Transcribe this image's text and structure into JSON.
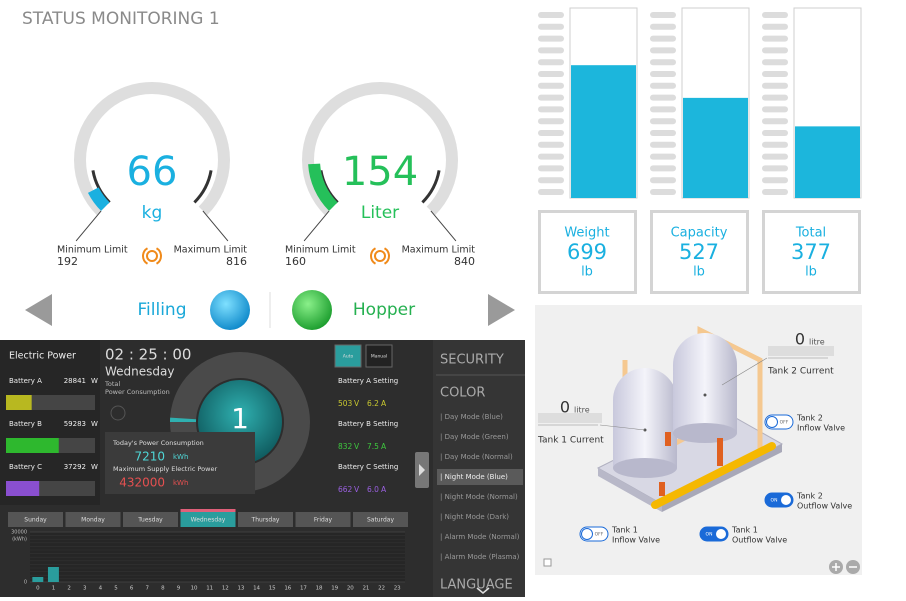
{
  "status_panel": {
    "title": "STATUS MONITORING 1",
    "gauges": [
      {
        "value": 66,
        "unit": "kg",
        "min_label": "Minimum Limit",
        "min": 192,
        "max_label": "Maximum Limit",
        "max": 816,
        "color": "#1ab0e0",
        "ylim": [
          0,
          1000
        ]
      },
      {
        "value": 154,
        "unit": "Liter",
        "min_label": "Minimum Limit",
        "min": 160,
        "max_label": "Maximum Limit",
        "max": 840,
        "color": "#25c05a",
        "ylim": [
          0,
          1000
        ]
      }
    ],
    "left_label": "Filling",
    "right_label": "Hopper"
  },
  "tanks": {
    "ylim": [
      0,
      1000
    ],
    "color": "#1cb6dc",
    "items": [
      {
        "name": "Weight",
        "value": 699,
        "unit": "lb"
      },
      {
        "name": "Capacity",
        "value": 527,
        "unit": "lb"
      },
      {
        "name": "Total",
        "value": 377,
        "unit": "lb"
      }
    ]
  },
  "power": {
    "title": "Electric Power",
    "battery_xlim": [
      0,
      100000
    ],
    "batteries": [
      {
        "name": "Battery A",
        "value": 28841,
        "unit": "W",
        "color": "#b8b820"
      },
      {
        "name": "Battery B",
        "value": 59283,
        "unit": "W",
        "color": "#2eb82e"
      },
      {
        "name": "Battery C",
        "value": 37292,
        "unit": "W",
        "color": "#8a4fd0"
      }
    ],
    "time": "02 : 25 : 00",
    "day": "Wednesday",
    "total_label": [
      "Total",
      "Power Consumption"
    ],
    "percent": 1,
    "percent_unit": "%",
    "today_label": "Today's Power Consumption",
    "today_value": 7210,
    "today_unit": "kWh",
    "max_label": "Maximum Supply Electric Power",
    "max_value": 432000,
    "max_unit": "kWh",
    "modes": [
      "Auto",
      "Manual"
    ],
    "settings": [
      {
        "name": "Battery A Setting",
        "voltage": 503,
        "voltage_unit": "V",
        "current": 6.2,
        "current_unit": "A",
        "color": "#c8c830"
      },
      {
        "name": "Battery B Setting",
        "voltage": 832,
        "voltage_unit": "V",
        "current": 7.5,
        "current_unit": "A",
        "color": "#3ec83e"
      },
      {
        "name": "Battery C Setting",
        "voltage": 662,
        "voltage_unit": "V",
        "current": {
          "value": 6,
          "label": "6.0"
        },
        "current_unit": "A",
        "color": "#9a60e0"
      }
    ],
    "days": [
      "Sunday",
      "Monday",
      "Tuesday",
      "Wednesday",
      "Thursday",
      "Friday",
      "Saturday"
    ]
  },
  "hourly": {
    "type": "bar",
    "y_label": "(kWh)",
    "ylim": [
      0,
      30000
    ],
    "yticks": [
      0,
      30000
    ],
    "color": "#2a9d9d",
    "categories": [
      "0",
      "1",
      "2",
      "3",
      "4",
      "5",
      "6",
      "7",
      "8",
      "9",
      "10",
      "11",
      "12",
      "13",
      "14",
      "15",
      "16",
      "17",
      "18",
      "19",
      "20",
      "21",
      "22",
      "23"
    ],
    "values": [
      3000,
      9000,
      null,
      null,
      null,
      null,
      null,
      null,
      null,
      null,
      null,
      null,
      null,
      null,
      null,
      null,
      null,
      null,
      null,
      null,
      null,
      null,
      null,
      null
    ]
  },
  "menu": {
    "security": "SECURITY",
    "color": "COLOR",
    "items": [
      "| Day Mode (Blue)",
      "| Day Mode (Green)",
      "| Day Mode (Normal)",
      "| Night Mode (Blue)",
      "| Night Mode (Normal)",
      "| Night Mode (Dark)",
      "| Alarm Mode (Normal)",
      "| Alarm Mode (Plasma)"
    ],
    "selected": "| Night Mode (Blue)",
    "language": "LANGUAGE"
  },
  "diagram": {
    "tanks": [
      {
        "value": 0,
        "unit": "litre",
        "label": "Tank 2 Current"
      },
      {
        "value": 0,
        "unit": "litre",
        "label": "Tank 1 Current"
      }
    ],
    "valves": [
      {
        "lines": [
          "Tank 2",
          "Inflow Valve"
        ],
        "state": "OFF"
      },
      {
        "lines": [
          "Tank 2",
          "Outflow Valve"
        ],
        "state": "ON"
      },
      {
        "lines": [
          "Tank 1",
          "Inflow Valve"
        ],
        "state": "OFF"
      },
      {
        "lines": [
          "Tank 1",
          "Outflow Valve"
        ],
        "state": "ON"
      }
    ]
  }
}
